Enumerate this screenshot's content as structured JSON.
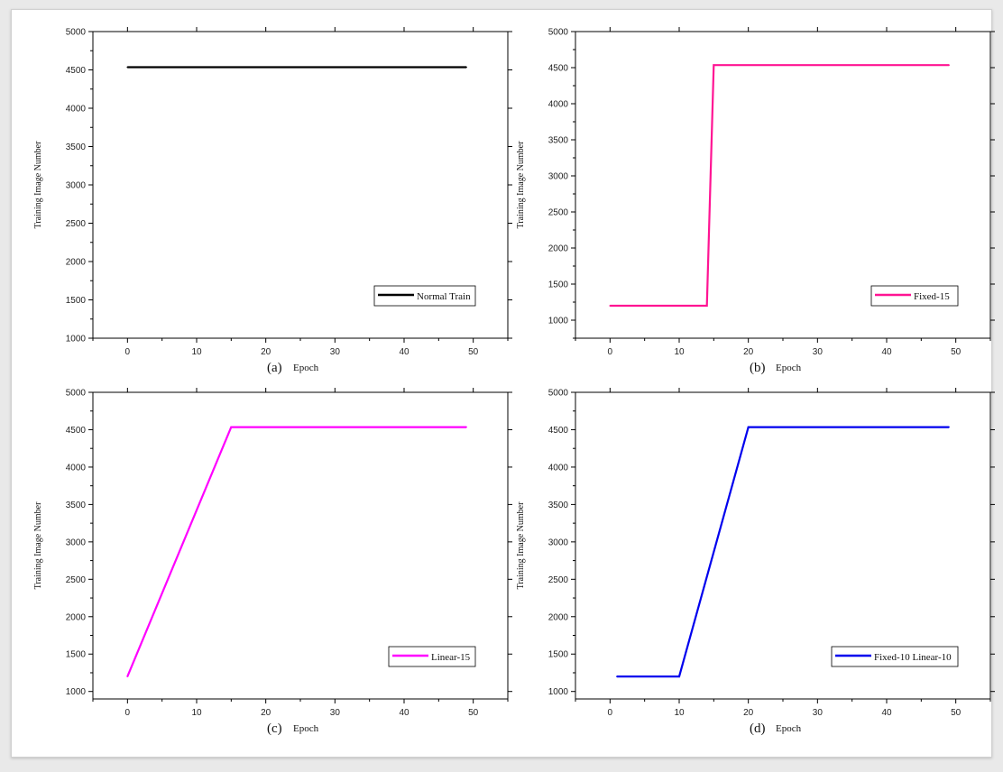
{
  "chart_data": [
    {
      "type": "line",
      "caption": "(a)",
      "xlabel": "Epoch",
      "ylabel": "Training Image Number",
      "xlim": [
        -5,
        55
      ],
      "ylim": [
        1000,
        5000
      ],
      "xticks": [
        0,
        10,
        20,
        30,
        40,
        50
      ],
      "yticks": [
        1000,
        1500,
        2000,
        2500,
        3000,
        3500,
        4000,
        4500,
        5000
      ],
      "legend_position": "bottom-right",
      "series": [
        {
          "name": "Normal Train",
          "color": "#000000",
          "x": [
            0,
            49
          ],
          "y": [
            4535,
            4535
          ]
        }
      ]
    },
    {
      "type": "line",
      "caption": "(b)",
      "xlabel": "Epoch",
      "ylabel": "Training Image Number",
      "xlim": [
        -5,
        55
      ],
      "ylim": [
        750,
        5000
      ],
      "xticks": [
        0,
        10,
        20,
        30,
        40,
        50
      ],
      "yticks": [
        1000,
        1500,
        2000,
        2500,
        3000,
        3500,
        4000,
        4500,
        5000
      ],
      "legend_position": "bottom-right",
      "series": [
        {
          "name": "Fixed-15",
          "color": "#ff1493",
          "x": [
            0,
            14,
            15,
            49
          ],
          "y": [
            1200,
            1200,
            4535,
            4535
          ]
        }
      ]
    },
    {
      "type": "line",
      "caption": "(c)",
      "xlabel": "Epoch",
      "ylabel": "Training Image Number",
      "xlim": [
        -5,
        55
      ],
      "ylim": [
        900,
        5000
      ],
      "xticks": [
        0,
        10,
        20,
        30,
        40,
        50
      ],
      "yticks": [
        1000,
        1500,
        2000,
        2500,
        3000,
        3500,
        4000,
        4500,
        5000
      ],
      "legend_position": "bottom-right",
      "series": [
        {
          "name": "Linear-15",
          "color": "#ff00ff",
          "x": [
            0,
            15,
            49
          ],
          "y": [
            1200,
            4535,
            4535
          ]
        }
      ]
    },
    {
      "type": "line",
      "caption": "(d)",
      "xlabel": "Epoch",
      "ylabel": "Training Image Number",
      "xlim": [
        -5,
        55
      ],
      "ylim": [
        900,
        5000
      ],
      "xticks": [
        0,
        10,
        20,
        30,
        40,
        50
      ],
      "yticks": [
        1000,
        1500,
        2000,
        2500,
        3000,
        3500,
        4000,
        4500,
        5000
      ],
      "legend_position": "bottom-right",
      "series": [
        {
          "name": "Fixed-10 Linear-10",
          "color": "#0000ee",
          "x": [
            1,
            10,
            20,
            49
          ],
          "y": [
            1200,
            1200,
            4535,
            4535
          ]
        }
      ]
    }
  ]
}
